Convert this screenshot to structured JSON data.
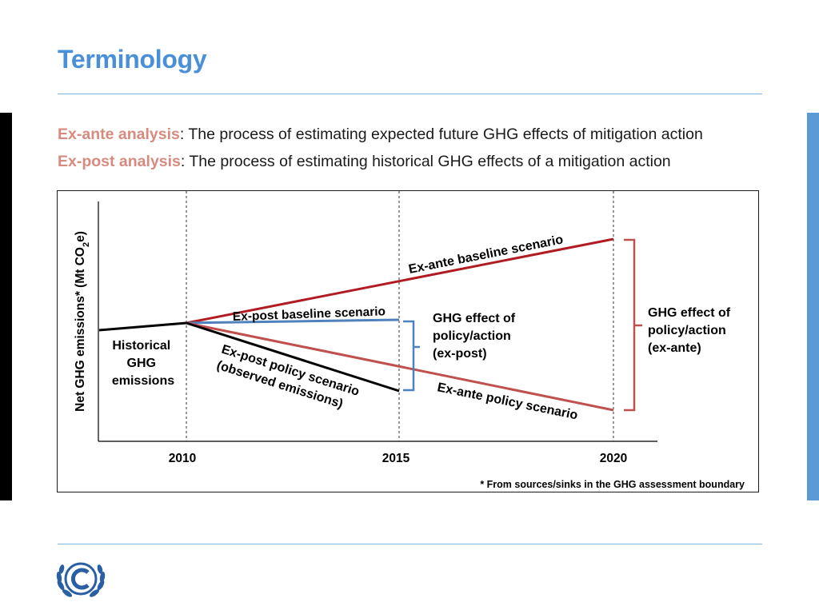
{
  "header": {
    "title": "Terminology"
  },
  "definitions": [
    {
      "term": "Ex-ante analysis",
      "text": ": The process of estimating expected future GHG effects of mitigation action"
    },
    {
      "term": "Ex-post analysis",
      "text": ": The process of estimating historical GHG effects of a mitigation action"
    }
  ],
  "diagram": {
    "y_axis_label": "Net GHG emissions* (Mt CO",
    "y_axis_sub": "2",
    "y_axis_suffix": "e)",
    "x_ticks": [
      "2010",
      "2015",
      "2020"
    ],
    "line_labels": {
      "exante_baseline": "Ex-ante baseline scenario",
      "expost_baseline": "Ex-post baseline scenario",
      "expost_policy_1": "Ex-post policy scenario",
      "expost_policy_2": "(observed emissions)",
      "exante_policy": "Ex-ante policy scenario"
    },
    "historical_label": [
      "Historical",
      "GHG",
      "emissions"
    ],
    "expost_effect_label": [
      "GHG effect of",
      "policy/action",
      "(ex-post)"
    ],
    "exante_effect_label": [
      "GHG effect of",
      "policy/action",
      "(ex-ante)"
    ],
    "footnote": "* From sources/sinks in the GHG assessment boundary"
  },
  "colors": {
    "title": "#4a90d9",
    "term": "#d98a7e",
    "baseline_red": "#b01c22",
    "policy_red": "#c0504d",
    "expost_blue": "#4f81bd",
    "historical_black": "#000000"
  },
  "logo": {
    "name": "unfccc-logo"
  }
}
